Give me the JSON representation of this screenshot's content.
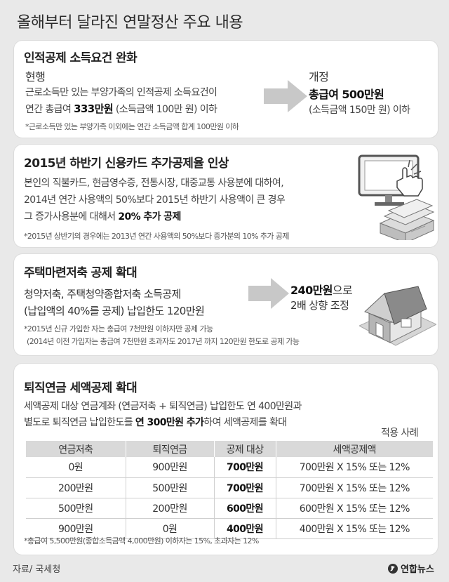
{
  "title": "올해부터 달라진 연말정산 주요 내용",
  "section1": {
    "heading": "인적공제 소득요건 완화",
    "before_label": "현행",
    "before_line1": "근로소득만 있는 부양가족의 인적공제 소득요건이",
    "before_line2_pre": "연간 총급여 ",
    "before_line2_bold": "333만원",
    "before_line2_post": " (소득금액 100만 원) 이하",
    "after_label": "개정",
    "after_bold": "총급여 500만원",
    "after_sub": "(소득금액 150만 원) 이하",
    "note": "*근로소득만 있는 부양가족 이외에는 연간 소득금액 합계 100만원 이하"
  },
  "section2": {
    "heading": "2015년 하반기 신용카드 추가공제율 인상",
    "line1": "본인의 직불카드, 현금영수증, 전통시장, 대중교통 사용분에 대하여,",
    "line2": "2014년 연간 사용액의 50%보다 2015년 하반기 사용액이 큰 경우",
    "line3_pre": "그 증가사용분에 대해서 ",
    "line3_bold": "20% 추가 공제",
    "note": "*2015년 상반기의 경우에는 2013년 연간 사용액의 50%보다 증가분의 10% 추가 공제"
  },
  "section3": {
    "heading": "주택마련저축 공제 확대",
    "line1": "청약저축, 주택청약종합저축 소득공제",
    "line2": "(납입액의 40%를 공제) 납입한도 120만원",
    "after_bold": "240만원",
    "after_post": "으로",
    "after_line2": "2배 상향 조정",
    "note1": "*2015년 신규 가입한 자는 총급여 7천만원 이하자만 공제 가능",
    "note2": "(2014년 이전 가입자는 총급여 7천만원 초과자도 2017년 까지 120만원 한도로 공제 가능"
  },
  "section4": {
    "heading": "퇴직연금 세액공제 확대",
    "line1": "세액공제 대상 연금계좌 (연금저축 + 퇴직연금) 납입한도 연 400만원과",
    "line2_pre": "별도로 퇴직연금 납입한도를 ",
    "line2_bold": "연 300만원 추가",
    "line2_post": "하여 세액공제를 확대",
    "table_caption": "적용 사례",
    "table_headers": [
      "연금저축",
      "퇴직연금",
      "공제 대상",
      "세액공제액"
    ],
    "table_rows": [
      [
        "0원",
        "900만원",
        "700만원",
        "700만원 X 15% 또는 12%"
      ],
      [
        "200만원",
        "500만원",
        "700만원",
        "700만원 X 15% 또는 12%"
      ],
      [
        "500만원",
        "200만원",
        "600만원",
        "600만원 X 15% 또는 12%"
      ],
      [
        "900만원",
        "0원",
        "400만원",
        "400만원 X 15% 또는 12%"
      ]
    ],
    "note": "*총급여 5,500만원(종합소득금액 4,000만원) 이하자는 15%, 초과자는 12%"
  },
  "footer": {
    "source": "자료/ 국세청",
    "logo_text": "연합뉴스"
  },
  "colors": {
    "background": "#e9e9e9",
    "card": "#ffffff",
    "arrow": "#c8c8c8",
    "table_header": "#d9d9d9"
  }
}
